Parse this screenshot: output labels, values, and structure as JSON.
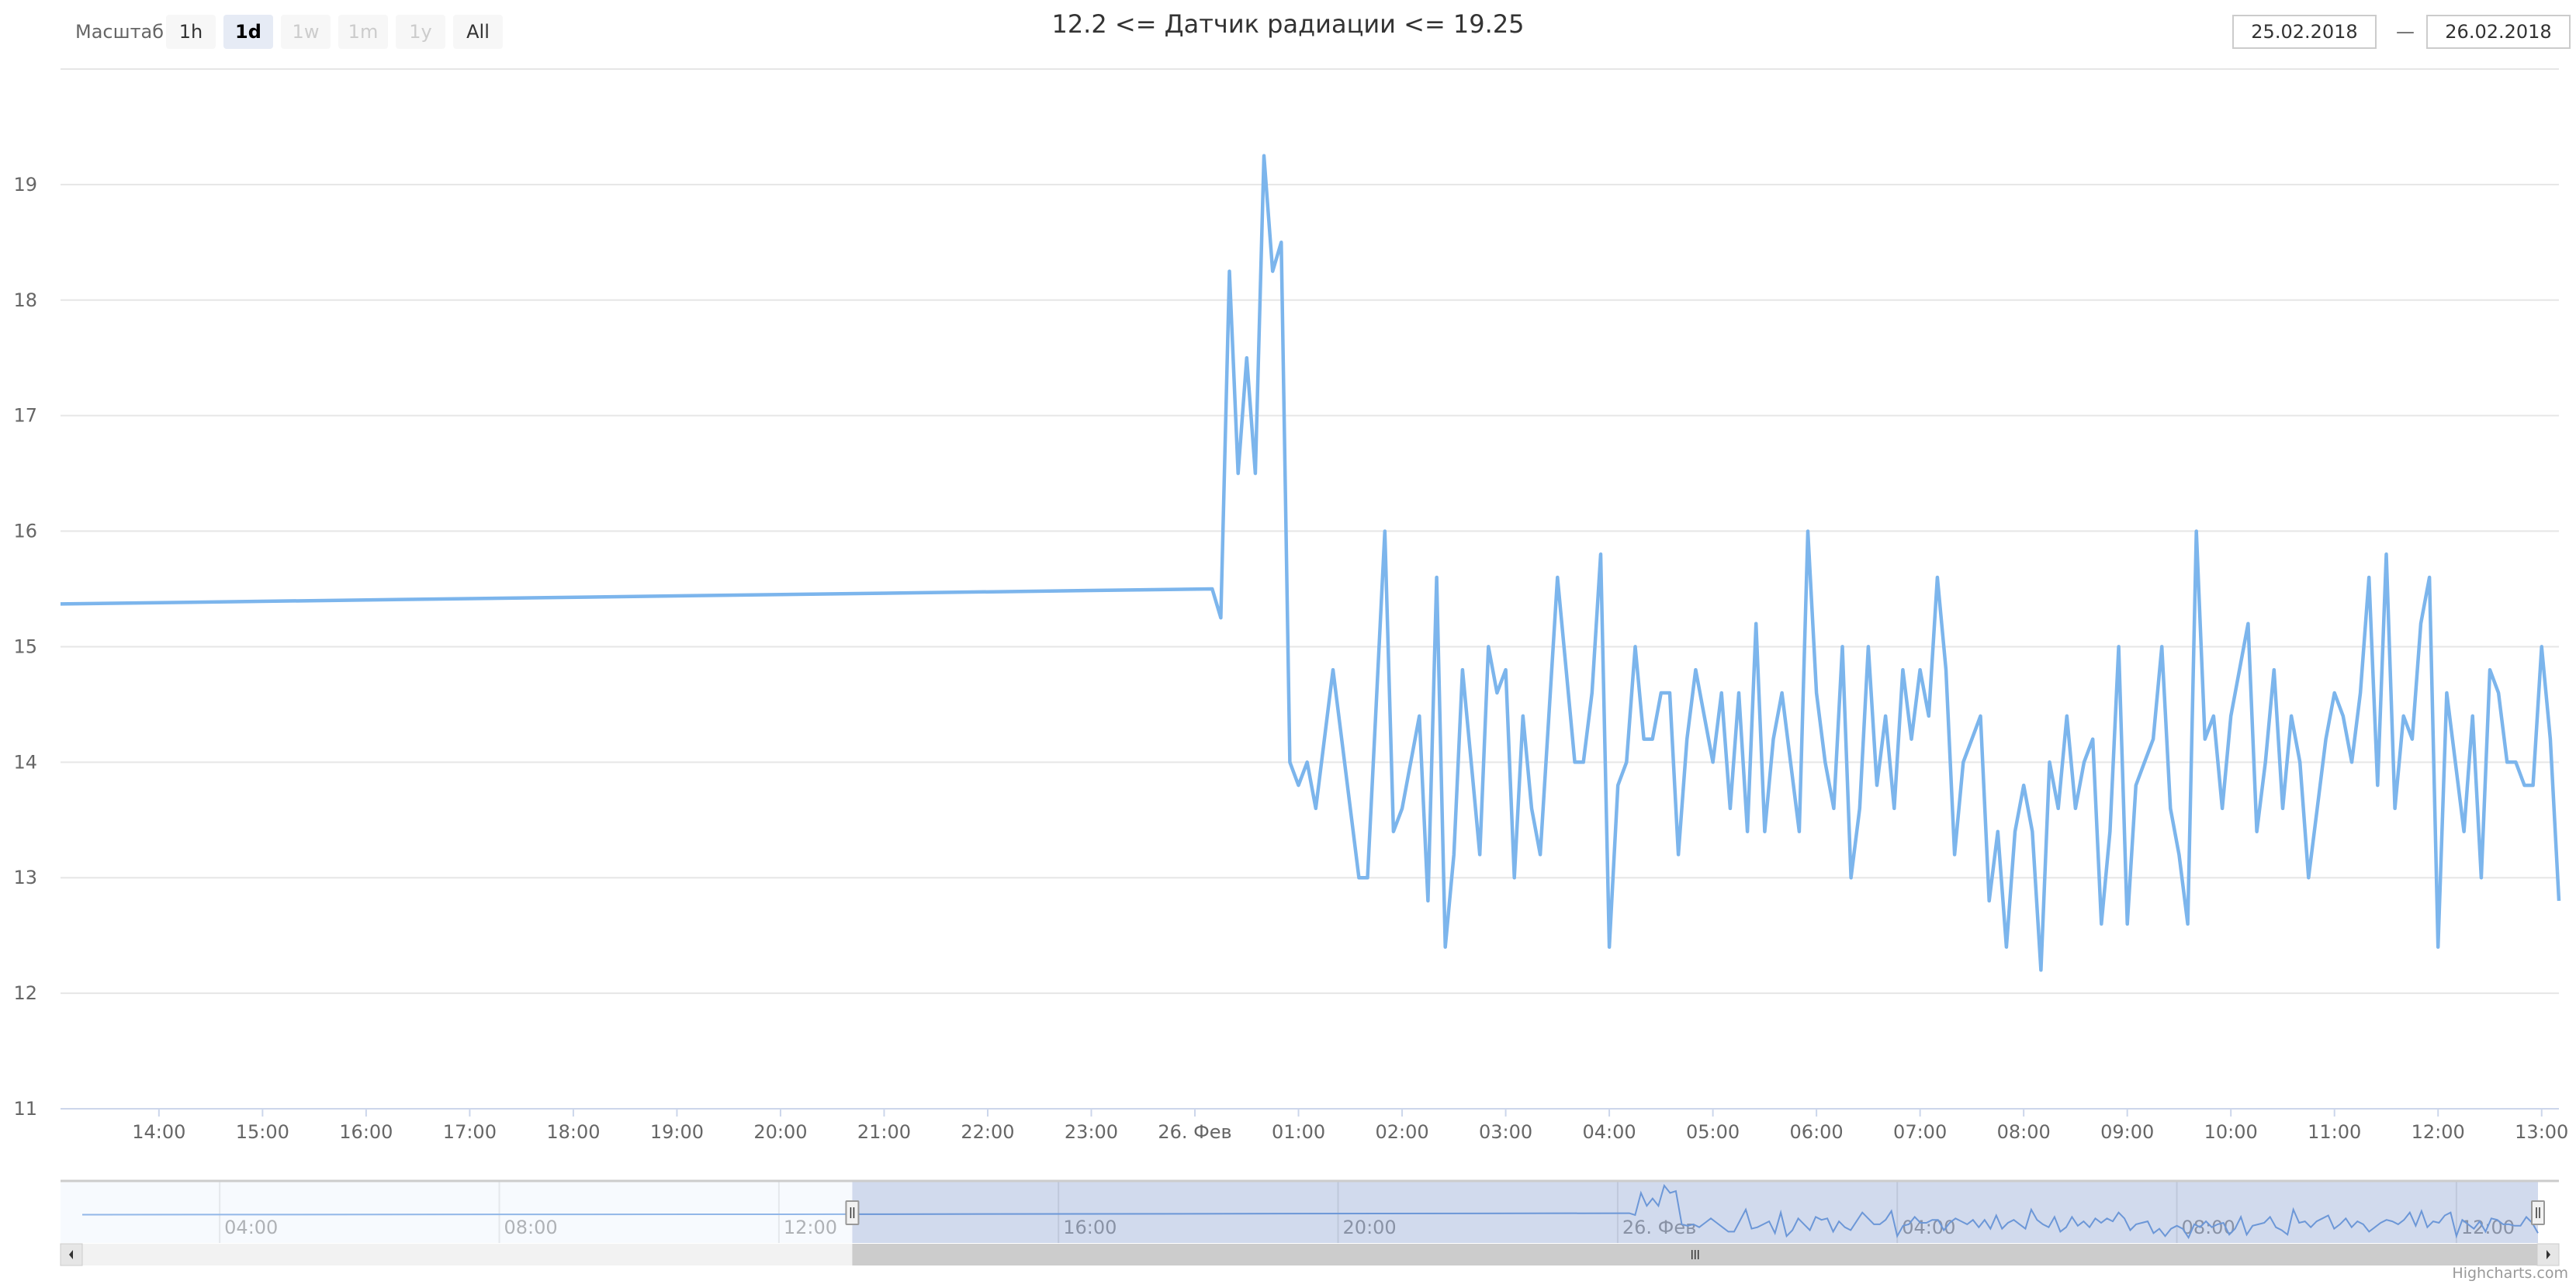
{
  "range_selector": {
    "label": "Масштаб",
    "buttons": [
      {
        "label": "1h",
        "state": "normal"
      },
      {
        "label": "1d",
        "state": "active"
      },
      {
        "label": "1w",
        "state": "disabled"
      },
      {
        "label": "1m",
        "state": "disabled"
      },
      {
        "label": "1y",
        "state": "disabled"
      },
      {
        "label": "All",
        "state": "normal"
      }
    ],
    "from_date": "25.02.2018",
    "dash": "—",
    "to_date": "26.02.2018"
  },
  "credits": "Highcharts.com",
  "colors": {
    "series": "#7cb5ec",
    "grid": "#e6e6e6",
    "navigator_mask": "#d1d9ec",
    "scrollbar_thumb": "#cccccc",
    "scrollbar_track": "#f2f2f2"
  },
  "chart_data": {
    "type": "line",
    "title": "12.2 <= Датчик радиации <= 19.25",
    "xlabel": "",
    "ylabel": "",
    "xlim": [
      "2018-02-25 13:03",
      "2018-02-26 13:10"
    ],
    "ylim": [
      11,
      20
    ],
    "grid": true,
    "y_ticks": [
      11,
      12,
      13,
      14,
      15,
      16,
      17,
      18,
      19
    ],
    "x_ticks": [
      {
        "t": "2018-02-25 14:00",
        "label": "14:00"
      },
      {
        "t": "2018-02-25 15:00",
        "label": "15:00"
      },
      {
        "t": "2018-02-25 16:00",
        "label": "16:00"
      },
      {
        "t": "2018-02-25 17:00",
        "label": "17:00"
      },
      {
        "t": "2018-02-25 18:00",
        "label": "18:00"
      },
      {
        "t": "2018-02-25 19:00",
        "label": "19:00"
      },
      {
        "t": "2018-02-25 20:00",
        "label": "20:00"
      },
      {
        "t": "2018-02-25 21:00",
        "label": "21:00"
      },
      {
        "t": "2018-02-25 22:00",
        "label": "22:00"
      },
      {
        "t": "2018-02-25 23:00",
        "label": "23:00"
      },
      {
        "t": "2018-02-26 00:00",
        "label": "26. Фев"
      },
      {
        "t": "2018-02-26 01:00",
        "label": "01:00"
      },
      {
        "t": "2018-02-26 02:00",
        "label": "02:00"
      },
      {
        "t": "2018-02-26 03:00",
        "label": "03:00"
      },
      {
        "t": "2018-02-26 04:00",
        "label": "04:00"
      },
      {
        "t": "2018-02-26 05:00",
        "label": "05:00"
      },
      {
        "t": "2018-02-26 06:00",
        "label": "06:00"
      },
      {
        "t": "2018-02-26 07:00",
        "label": "07:00"
      },
      {
        "t": "2018-02-26 08:00",
        "label": "08:00"
      },
      {
        "t": "2018-02-26 09:00",
        "label": "09:00"
      },
      {
        "t": "2018-02-26 10:00",
        "label": "10:00"
      },
      {
        "t": "2018-02-26 11:00",
        "label": "11:00"
      },
      {
        "t": "2018-02-26 12:00",
        "label": "12:00"
      },
      {
        "t": "2018-02-26 13:00",
        "label": "13:00"
      }
    ],
    "points": [
      [
        "2018-02-25 13:03",
        15.37
      ],
      [
        "2018-02-26 00:10",
        15.5
      ],
      [
        "2018-02-26 00:15",
        15.25
      ],
      [
        "2018-02-26 00:20",
        18.25
      ],
      [
        "2018-02-26 00:25",
        16.5
      ],
      [
        "2018-02-26 00:30",
        17.5
      ],
      [
        "2018-02-26 00:35",
        16.5
      ],
      [
        "2018-02-26 00:40",
        19.25
      ],
      [
        "2018-02-26 00:45",
        18.25
      ],
      [
        "2018-02-26 00:50",
        18.5
      ],
      [
        "2018-02-26 00:55",
        14.0
      ],
      [
        "2018-02-26 01:00",
        13.8
      ],
      [
        "2018-02-26 01:05",
        14.0
      ],
      [
        "2018-02-26 01:10",
        13.6
      ],
      [
        "2018-02-26 01:15",
        14.2
      ],
      [
        "2018-02-26 01:20",
        14.8
      ],
      [
        "2018-02-26 01:25",
        14.2
      ],
      [
        "2018-02-26 01:30",
        13.6
      ],
      [
        "2018-02-26 01:35",
        13.0
      ],
      [
        "2018-02-26 01:40",
        13.0
      ],
      [
        "2018-02-26 01:45",
        14.5
      ],
      [
        "2018-02-26 01:50",
        16.0
      ],
      [
        "2018-02-26 01:55",
        13.4
      ],
      [
        "2018-02-26 02:00",
        13.6
      ],
      [
        "2018-02-26 02:05",
        14.0
      ],
      [
        "2018-02-26 02:10",
        14.4
      ],
      [
        "2018-02-26 02:15",
        12.8
      ],
      [
        "2018-02-26 02:20",
        15.6
      ],
      [
        "2018-02-26 02:25",
        12.4
      ],
      [
        "2018-02-26 02:30",
        13.2
      ],
      [
        "2018-02-26 02:35",
        14.8
      ],
      [
        "2018-02-26 02:40",
        14.0
      ],
      [
        "2018-02-26 02:45",
        13.2
      ],
      [
        "2018-02-26 02:50",
        15.0
      ],
      [
        "2018-02-26 02:55",
        14.6
      ],
      [
        "2018-02-26 03:00",
        14.8
      ],
      [
        "2018-02-26 03:05",
        13.0
      ],
      [
        "2018-02-26 03:10",
        14.4
      ],
      [
        "2018-02-26 03:15",
        13.6
      ],
      [
        "2018-02-26 03:20",
        13.2
      ],
      [
        "2018-02-26 03:25",
        14.4
      ],
      [
        "2018-02-26 03:30",
        15.6
      ],
      [
        "2018-02-26 03:35",
        14.8
      ],
      [
        "2018-02-26 03:40",
        14.0
      ],
      [
        "2018-02-26 03:45",
        14.0
      ],
      [
        "2018-02-26 03:50",
        14.6
      ],
      [
        "2018-02-26 03:55",
        15.8
      ],
      [
        "2018-02-26 04:00",
        12.4
      ],
      [
        "2018-02-26 04:05",
        13.8
      ],
      [
        "2018-02-26 04:10",
        14.0
      ],
      [
        "2018-02-26 04:15",
        15.0
      ],
      [
        "2018-02-26 04:20",
        14.2
      ],
      [
        "2018-02-26 04:25",
        14.2
      ],
      [
        "2018-02-26 04:30",
        14.6
      ],
      [
        "2018-02-26 04:35",
        14.6
      ],
      [
        "2018-02-26 04:40",
        13.2
      ],
      [
        "2018-02-26 04:45",
        14.2
      ],
      [
        "2018-02-26 04:50",
        14.8
      ],
      [
        "2018-02-26 04:55",
        14.4
      ],
      [
        "2018-02-26 05:00",
        14.0
      ],
      [
        "2018-02-26 05:05",
        14.6
      ],
      [
        "2018-02-26 05:10",
        13.6
      ],
      [
        "2018-02-26 05:15",
        14.6
      ],
      [
        "2018-02-26 05:20",
        13.4
      ],
      [
        "2018-02-26 05:25",
        15.2
      ],
      [
        "2018-02-26 05:30",
        13.4
      ],
      [
        "2018-02-26 05:35",
        14.2
      ],
      [
        "2018-02-26 05:40",
        14.6
      ],
      [
        "2018-02-26 05:45",
        14.0
      ],
      [
        "2018-02-26 05:50",
        13.4
      ],
      [
        "2018-02-26 05:55",
        16.0
      ],
      [
        "2018-02-26 06:00",
        14.6
      ],
      [
        "2018-02-26 06:05",
        14.0
      ],
      [
        "2018-02-26 06:10",
        13.6
      ],
      [
        "2018-02-26 06:15",
        15.0
      ],
      [
        "2018-02-26 06:20",
        13.0
      ],
      [
        "2018-02-26 06:25",
        13.6
      ],
      [
        "2018-02-26 06:30",
        15.0
      ],
      [
        "2018-02-26 06:35",
        13.8
      ],
      [
        "2018-02-26 06:40",
        14.4
      ],
      [
        "2018-02-26 06:45",
        13.6
      ],
      [
        "2018-02-26 06:50",
        14.8
      ],
      [
        "2018-02-26 06:55",
        14.2
      ],
      [
        "2018-02-26 07:00",
        14.8
      ],
      [
        "2018-02-26 07:05",
        14.4
      ],
      [
        "2018-02-26 07:10",
        15.6
      ],
      [
        "2018-02-26 07:15",
        14.8
      ],
      [
        "2018-02-26 07:20",
        13.2
      ],
      [
        "2018-02-26 07:25",
        14.0
      ],
      [
        "2018-02-26 07:30",
        14.2
      ],
      [
        "2018-02-26 07:35",
        14.4
      ],
      [
        "2018-02-26 07:40",
        12.8
      ],
      [
        "2018-02-26 07:45",
        13.4
      ],
      [
        "2018-02-26 07:50",
        12.4
      ],
      [
        "2018-02-26 07:55",
        13.4
      ],
      [
        "2018-02-26 08:00",
        13.8
      ],
      [
        "2018-02-26 08:05",
        13.4
      ],
      [
        "2018-02-26 08:10",
        12.2
      ],
      [
        "2018-02-26 08:15",
        14.0
      ],
      [
        "2018-02-26 08:20",
        13.6
      ],
      [
        "2018-02-26 08:25",
        14.4
      ],
      [
        "2018-02-26 08:30",
        13.6
      ],
      [
        "2018-02-26 08:35",
        14.0
      ],
      [
        "2018-02-26 08:40",
        14.2
      ],
      [
        "2018-02-26 08:45",
        12.6
      ],
      [
        "2018-02-26 08:50",
        13.4
      ],
      [
        "2018-02-26 08:55",
        15.0
      ],
      [
        "2018-02-26 09:00",
        12.6
      ],
      [
        "2018-02-26 09:05",
        13.8
      ],
      [
        "2018-02-26 09:10",
        14.0
      ],
      [
        "2018-02-26 09:15",
        14.2
      ],
      [
        "2018-02-26 09:20",
        15.0
      ],
      [
        "2018-02-26 09:25",
        13.6
      ],
      [
        "2018-02-26 09:30",
        13.2
      ],
      [
        "2018-02-26 09:35",
        12.6
      ],
      [
        "2018-02-26 09:40",
        16.0
      ],
      [
        "2018-02-26 09:45",
        14.2
      ],
      [
        "2018-02-26 09:50",
        14.4
      ],
      [
        "2018-02-26 09:55",
        13.6
      ],
      [
        "2018-02-26 10:00",
        14.4
      ],
      [
        "2018-02-26 10:05",
        14.8
      ],
      [
        "2018-02-26 10:10",
        15.2
      ],
      [
        "2018-02-26 10:15",
        13.4
      ],
      [
        "2018-02-26 10:20",
        14.0
      ],
      [
        "2018-02-26 10:25",
        14.8
      ],
      [
        "2018-02-26 10:30",
        13.6
      ],
      [
        "2018-02-26 10:35",
        14.4
      ],
      [
        "2018-02-26 10:40",
        14.0
      ],
      [
        "2018-02-26 10:45",
        13.0
      ],
      [
        "2018-02-26 10:50",
        13.6
      ],
      [
        "2018-02-26 10:55",
        14.2
      ],
      [
        "2018-02-26 11:00",
        14.6
      ],
      [
        "2018-02-26 11:05",
        14.4
      ],
      [
        "2018-02-26 11:10",
        14.0
      ],
      [
        "2018-02-26 11:15",
        14.6
      ],
      [
        "2018-02-26 11:20",
        15.6
      ],
      [
        "2018-02-26 11:25",
        13.8
      ],
      [
        "2018-02-26 11:30",
        15.8
      ],
      [
        "2018-02-26 11:35",
        13.6
      ],
      [
        "2018-02-26 11:40",
        14.4
      ],
      [
        "2018-02-26 11:45",
        14.2
      ],
      [
        "2018-02-26 11:50",
        15.2
      ],
      [
        "2018-02-26 11:55",
        15.6
      ],
      [
        "2018-02-26 12:00",
        12.4
      ],
      [
        "2018-02-26 12:05",
        14.6
      ],
      [
        "2018-02-26 12:10",
        14.0
      ],
      [
        "2018-02-26 12:15",
        13.4
      ],
      [
        "2018-02-26 12:20",
        14.4
      ],
      [
        "2018-02-26 12:25",
        13.0
      ],
      [
        "2018-02-26 12:30",
        14.8
      ],
      [
        "2018-02-26 12:35",
        14.6
      ],
      [
        "2018-02-26 12:40",
        14.0
      ],
      [
        "2018-02-26 12:45",
        14.0
      ],
      [
        "2018-02-26 12:50",
        13.8
      ],
      [
        "2018-02-26 12:55",
        13.8
      ],
      [
        "2018-02-26 13:00",
        15.0
      ],
      [
        "2018-02-26 13:05",
        14.2
      ],
      [
        "2018-02-26 13:10",
        12.8
      ]
    ],
    "navigator": {
      "xlim": [
        "2018-02-25 02:02",
        "2018-02-26 13:10"
      ],
      "selected": [
        "2018-02-25 13:03",
        "2018-02-26 13:10"
      ],
      "earlier_points": [
        [
          "2018-02-25 02:02",
          15.3
        ]
      ],
      "x_ticks": [
        {
          "t": "2018-02-25 04:00",
          "label": "04:00"
        },
        {
          "t": "2018-02-25 08:00",
          "label": "08:00"
        },
        {
          "t": "2018-02-25 12:00",
          "label": "12:00"
        },
        {
          "t": "2018-02-25 16:00",
          "label": "16:00"
        },
        {
          "t": "2018-02-25 20:00",
          "label": "20:00"
        },
        {
          "t": "2018-02-26 00:00",
          "label": "26. Фев"
        },
        {
          "t": "2018-02-26 04:00",
          "label": "04:00"
        },
        {
          "t": "2018-02-26 08:00",
          "label": "08:00"
        },
        {
          "t": "2018-02-26 12:00",
          "label": "12:00"
        }
      ]
    }
  }
}
